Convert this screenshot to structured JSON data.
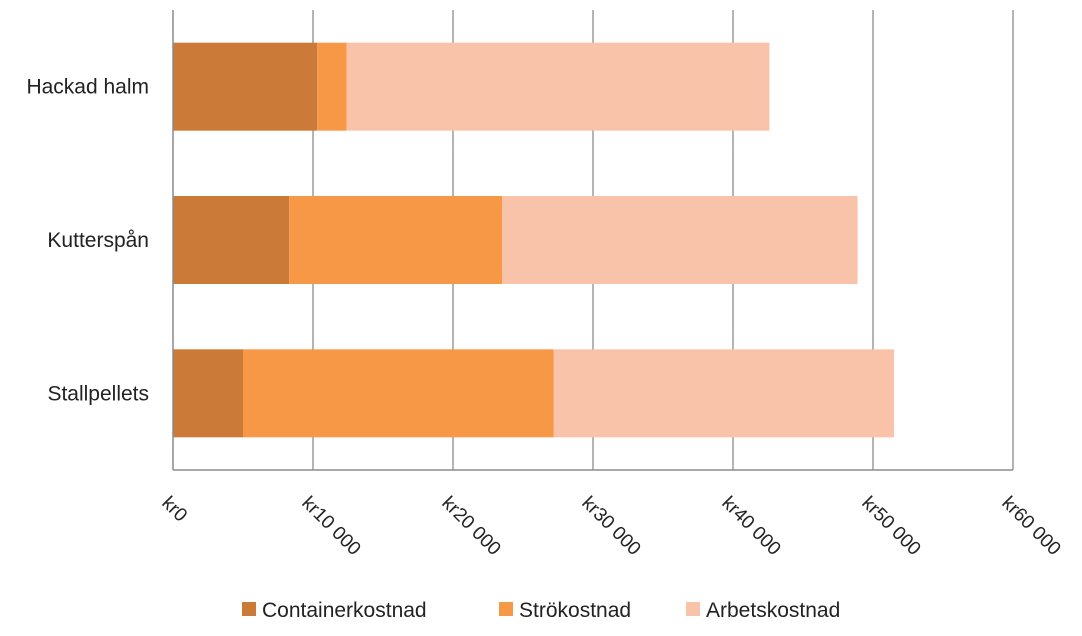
{
  "chart_data": {
    "type": "bar",
    "orientation": "horizontal",
    "stacked": true,
    "categories": [
      "Hackad halm",
      "Kutterspån",
      "Stallpellets"
    ],
    "series": [
      {
        "name": "Containerkostnad",
        "color": "#cc7a38",
        "values": [
          10300,
          8300,
          5000
        ]
      },
      {
        "name": "Strökostnad",
        "color": "#f79847",
        "values": [
          2100,
          15200,
          22200
        ]
      },
      {
        "name": "Arbetskostnad",
        "color": "#f9c3a9",
        "values": [
          30200,
          25400,
          24300
        ]
      }
    ],
    "xlim": [
      0,
      60000
    ],
    "x_ticks": [
      0,
      10000,
      20000,
      30000,
      40000,
      50000,
      60000
    ],
    "x_tick_labels": [
      "kr0",
      "kr10 000",
      "kr20 000",
      "kr30 000",
      "kr40 000",
      "kr50 000",
      "kr60 000"
    ],
    "grid": "vertical",
    "legend_position": "bottom",
    "title": "",
    "xlabel": "",
    "ylabel": ""
  }
}
